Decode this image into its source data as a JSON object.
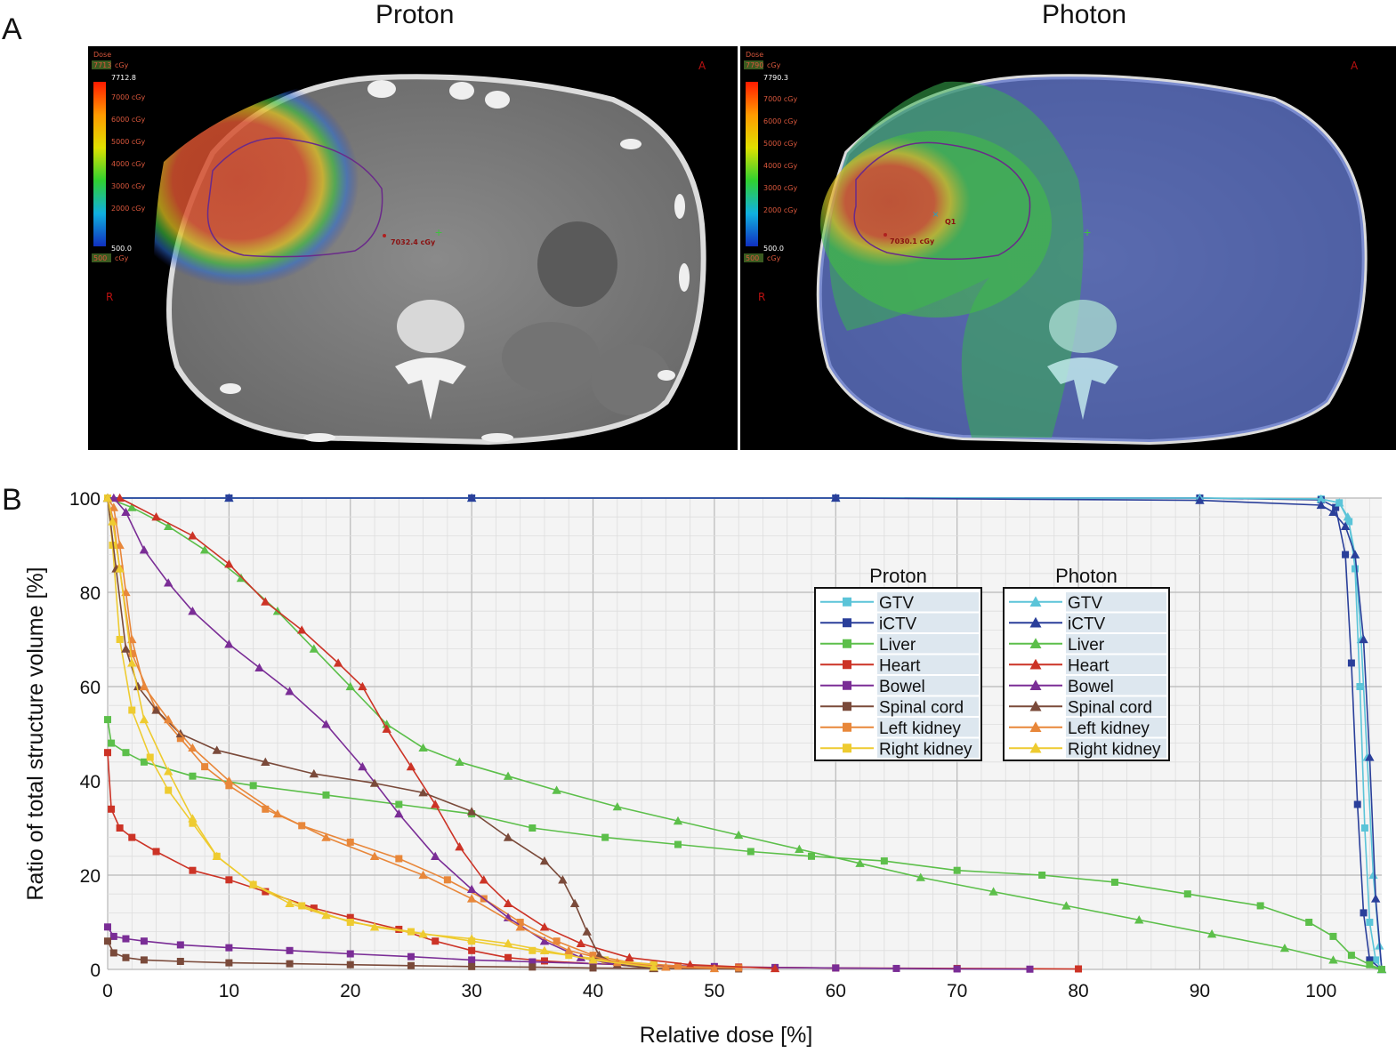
{
  "panels": {
    "a_label": "A",
    "b_label": "B"
  },
  "images": {
    "left": {
      "title": "Proton",
      "colorbar": {
        "header": "Dose",
        "max_box": "7713",
        "max_unit": "cGy",
        "max_value": "7712.8",
        "ticks": [
          "7000 cGy",
          "6000 cGy",
          "5000 cGy",
          "4000 cGy",
          "3000 cGy",
          "2000 cGy"
        ],
        "min_value": "500.0",
        "min_box": "500",
        "min_unit": "cGy"
      },
      "point_label": "7032.4 cGy",
      "orientation": {
        "anterior": "A",
        "right": "R"
      }
    },
    "right": {
      "title": "Photon",
      "colorbar": {
        "header": "Dose",
        "max_box": "7790",
        "max_unit": "cGy",
        "max_value": "7790.3",
        "ticks": [
          "7000 cGy",
          "6000 cGy",
          "5000 cGy",
          "4000 cGy",
          "3000 cGy",
          "2000 cGy"
        ],
        "min_value": "500.0",
        "min_box": "500",
        "min_unit": "cGy"
      },
      "point_label": "7030.1 cGy",
      "point_marker_label": "Q1",
      "orientation": {
        "anterior": "A",
        "right": "R"
      }
    }
  },
  "colors": {
    "GTV": "#5bc4d8",
    "iCTV": "#2a3f9a",
    "Liver": "#5cbf4a",
    "Heart": "#cc3326",
    "Bowel": "#7a2d96",
    "Spinal cord": "#7a4a3a",
    "Left kidney": "#e8873a",
    "Right kidney": "#eecb30"
  },
  "chart_data": {
    "type": "line",
    "xlabel": "Relative dose [%]",
    "ylabel": "Ratio of total structure volume [%]",
    "xlim": [
      0,
      105
    ],
    "ylim": [
      0,
      100
    ],
    "x_ticks": [
      0,
      10,
      20,
      30,
      40,
      50,
      60,
      70,
      80,
      90,
      100
    ],
    "y_ticks": [
      0,
      20,
      40,
      60,
      80,
      100
    ],
    "grid": true,
    "legend": {
      "placement": "upper-right",
      "groups": [
        {
          "title": "Proton",
          "marker": "square",
          "entries": [
            "GTV",
            "iCTV",
            "Liver",
            "Heart",
            "Bowel",
            "Spinal cord",
            "Left kidney",
            "Right kidney"
          ]
        },
        {
          "title": "Photon",
          "marker": "triangle",
          "entries": [
            "GTV",
            "iCTV",
            "Liver",
            "Heart",
            "Bowel",
            "Spinal cord",
            "Left kidney",
            "Right kidney"
          ]
        }
      ]
    },
    "series": [
      {
        "name": "GTV",
        "group": "Proton",
        "x": [
          0,
          10,
          30,
          60,
          90,
          100,
          101.5,
          102.3,
          102.8,
          103.2,
          103.6,
          104,
          104.5,
          105
        ],
        "y": [
          100,
          100,
          100,
          100,
          100,
          99.8,
          99,
          95,
          85,
          60,
          30,
          10,
          2,
          0
        ]
      },
      {
        "name": "iCTV",
        "group": "Proton",
        "x": [
          0,
          10,
          30,
          60,
          90,
          100,
          101.2,
          102,
          102.5,
          103,
          103.5,
          104,
          105
        ],
        "y": [
          100,
          100,
          100,
          100,
          100,
          99.6,
          98,
          88,
          65,
          35,
          12,
          2,
          0
        ]
      },
      {
        "name": "Liver",
        "group": "Proton",
        "x": [
          0,
          0.3,
          1.5,
          3,
          7,
          12,
          18,
          24,
          30,
          35,
          41,
          47,
          53,
          58,
          64,
          70,
          77,
          83,
          89,
          95,
          99,
          101,
          102.5,
          104,
          105
        ],
        "y": [
          53,
          48,
          46,
          44,
          41,
          39,
          37,
          35,
          33,
          30,
          28,
          26.5,
          25,
          24,
          23,
          21,
          20,
          18.5,
          16,
          13.5,
          10,
          7,
          3,
          1,
          0
        ]
      },
      {
        "name": "Heart",
        "group": "Proton",
        "x": [
          0,
          0.3,
          1,
          2,
          4,
          7,
          10,
          13,
          17,
          20,
          24,
          27,
          30,
          33,
          36,
          40,
          45,
          52,
          60,
          70,
          80
        ],
        "y": [
          46,
          34,
          30,
          28,
          25,
          21,
          19,
          16.5,
          13,
          11,
          8.5,
          6,
          4,
          2.5,
          1.8,
          1.2,
          0.8,
          0.5,
          0.3,
          0.2,
          0.1
        ]
      },
      {
        "name": "Bowel",
        "group": "Proton",
        "x": [
          0,
          0.5,
          1.5,
          3,
          6,
          10,
          15,
          20,
          25,
          30,
          35,
          40,
          45,
          50,
          55,
          60,
          65,
          70,
          76
        ],
        "y": [
          9,
          7,
          6.5,
          6,
          5.2,
          4.6,
          4,
          3.3,
          2.7,
          2,
          1.6,
          1.2,
          0.9,
          0.6,
          0.4,
          0.3,
          0.2,
          0.1,
          0.05
        ]
      },
      {
        "name": "Spinal cord",
        "group": "Proton",
        "x": [
          0,
          0.5,
          1.5,
          3,
          6,
          10,
          15,
          20,
          25,
          30,
          35,
          40,
          45,
          52
        ],
        "y": [
          6,
          3.5,
          2.5,
          2,
          1.7,
          1.4,
          1.2,
          1,
          0.8,
          0.6,
          0.5,
          0.3,
          0.2,
          0.1
        ]
      },
      {
        "name": "Left kidney",
        "group": "Proton",
        "x": [
          0,
          0.5,
          1,
          2,
          4,
          6,
          8,
          10,
          13,
          16,
          20,
          24,
          28,
          31,
          34,
          37,
          40,
          43,
          47,
          52
        ],
        "y": [
          100,
          95,
          85,
          67,
          55,
          49,
          43,
          39,
          34,
          30.5,
          27,
          23.5,
          19,
          15,
          10,
          6,
          3,
          1.5,
          0.7,
          0.3
        ]
      },
      {
        "name": "Right kidney",
        "group": "Proton",
        "x": [
          0,
          0.4,
          1,
          2,
          3.5,
          5,
          7,
          9,
          12,
          16,
          20,
          25,
          30,
          35,
          38,
          41,
          45
        ],
        "y": [
          100,
          90,
          70,
          55,
          45,
          38,
          31,
          24,
          18,
          13.5,
          10,
          8,
          6,
          4,
          3,
          2,
          1
        ]
      },
      {
        "name": "GTV",
        "group": "Photon",
        "x": [
          0,
          10,
          30,
          60,
          90,
          100,
          101.5,
          102.2,
          102.8,
          103.3,
          103.8,
          104.3,
          104.8,
          105
        ],
        "y": [
          100,
          100,
          100,
          100,
          100,
          99.8,
          99,
          96,
          88,
          70,
          45,
          20,
          5,
          0
        ]
      },
      {
        "name": "iCTV",
        "group": "Photon",
        "x": [
          0,
          10,
          30,
          60,
          90,
          100,
          101,
          102,
          102.8,
          103.5,
          104,
          104.5,
          105
        ],
        "y": [
          100,
          100,
          100,
          100,
          99.5,
          98.5,
          97,
          94,
          88,
          70,
          45,
          15,
          0
        ]
      },
      {
        "name": "Liver",
        "group": "Photon",
        "x": [
          0,
          2,
          5,
          8,
          11,
          14,
          17,
          20,
          23,
          26,
          29,
          33,
          37,
          42,
          47,
          52,
          57,
          62,
          67,
          73,
          79,
          85,
          91,
          97,
          101,
          105
        ],
        "y": [
          100,
          98,
          94,
          89,
          83,
          76,
          68,
          60,
          52,
          47,
          44,
          41,
          38,
          34.5,
          31.5,
          28.5,
          25.5,
          22.5,
          19.5,
          16.5,
          13.5,
          10.5,
          7.5,
          4.5,
          2,
          0
        ]
      },
      {
        "name": "Heart",
        "group": "Photon",
        "x": [
          1,
          4,
          7,
          10,
          13,
          16,
          19,
          21,
          23,
          25,
          27,
          29,
          31,
          33,
          36,
          39,
          43,
          48,
          55
        ],
        "y": [
          100,
          96,
          92,
          86,
          78,
          72,
          65,
          60,
          51,
          43,
          35,
          26,
          19,
          14,
          9,
          5.5,
          2.5,
          1,
          0.2
        ]
      },
      {
        "name": "Bowel",
        "group": "Photon",
        "x": [
          0.5,
          1.5,
          3,
          5,
          7,
          10,
          12.5,
          15,
          18,
          21,
          24,
          27,
          30,
          33,
          36,
          39,
          42,
          45
        ],
        "y": [
          100,
          97,
          89,
          82,
          76,
          69,
          64,
          59,
          52,
          43,
          33,
          24,
          17,
          11,
          6,
          2.5,
          1,
          0.3
        ]
      },
      {
        "name": "Spinal cord",
        "group": "Photon",
        "x": [
          0,
          0.7,
          1.5,
          2.5,
          4,
          6,
          9,
          13,
          17,
          22,
          26,
          30,
          33,
          36,
          37.5,
          38.5,
          39.5,
          40.5,
          42,
          45
        ],
        "y": [
          100,
          85,
          68,
          60,
          55,
          50,
          46.5,
          44,
          41.5,
          39.5,
          37.5,
          33.5,
          28,
          23,
          19,
          14,
          8,
          3,
          1,
          0.2
        ]
      },
      {
        "name": "Left kidney",
        "group": "Photon",
        "x": [
          0,
          0.5,
          1,
          1.5,
          2,
          3,
          5,
          7,
          10,
          14,
          18,
          22,
          26,
          30,
          34,
          38,
          42,
          46,
          50
        ],
        "y": [
          100,
          98,
          90,
          80,
          70,
          60,
          53,
          47,
          40,
          33,
          28,
          24,
          20,
          15,
          9,
          4,
          1.5,
          0.5,
          0.2
        ]
      },
      {
        "name": "Right kidney",
        "group": "Photon",
        "x": [
          0,
          0.4,
          1,
          2,
          3,
          5,
          7,
          9,
          12,
          15,
          18,
          22,
          26,
          30,
          33,
          36,
          40,
          45
        ],
        "y": [
          100,
          95,
          85,
          65,
          53,
          42,
          32,
          24,
          18,
          14,
          11.5,
          9,
          7.5,
          6.5,
          5.5,
          4,
          2,
          0.5
        ]
      }
    ]
  }
}
